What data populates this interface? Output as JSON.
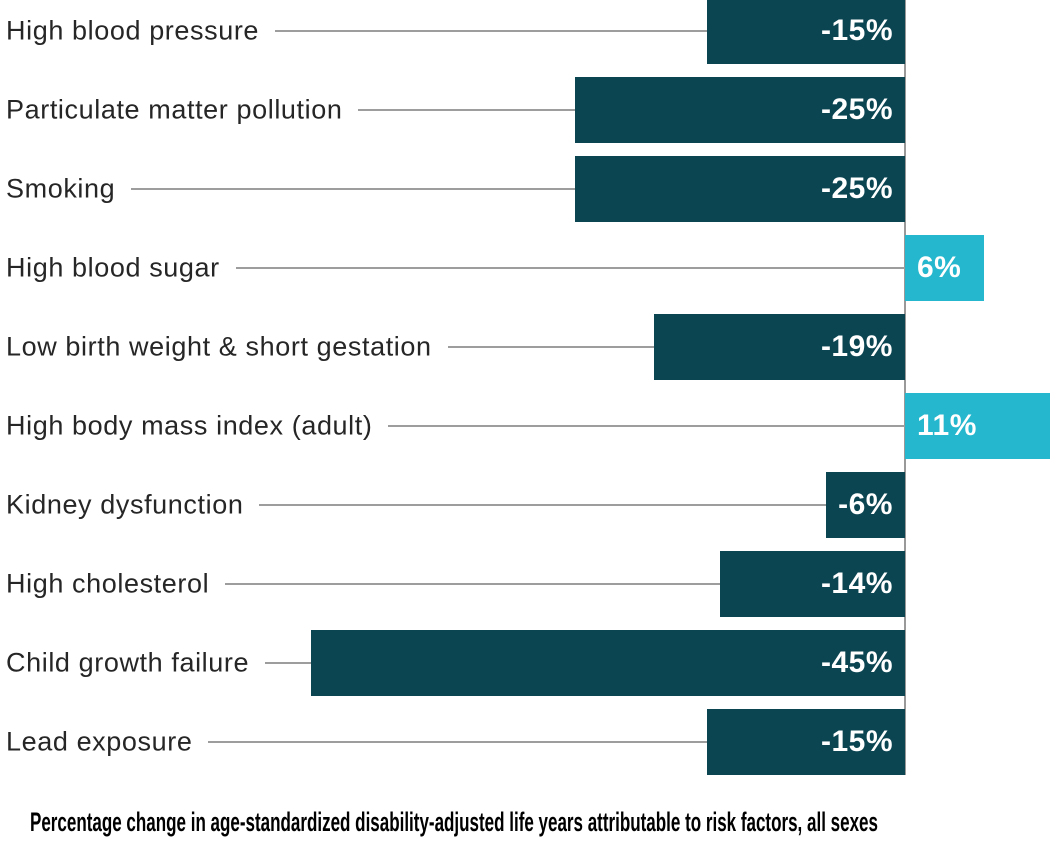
{
  "chart_data": {
    "type": "bar",
    "orientation": "horizontal",
    "items": [
      {
        "label": "High blood pressure",
        "value": -15,
        "value_label": "-15%"
      },
      {
        "label": "Particulate matter pollution",
        "value": -25,
        "value_label": "-25%"
      },
      {
        "label": "Smoking",
        "value": -25,
        "value_label": "-25%"
      },
      {
        "label": "High blood sugar",
        "value": 6,
        "value_label": "6%"
      },
      {
        "label": "Low birth weight & short gestation",
        "value": -19,
        "value_label": "-19%"
      },
      {
        "label": "High body mass index (adult)",
        "value": 11,
        "value_label": "11%"
      },
      {
        "label": "Kidney dysfunction",
        "value": -6,
        "value_label": "-6%"
      },
      {
        "label": "High cholesterol",
        "value": -14,
        "value_label": "-14%"
      },
      {
        "label": "Child growth failure",
        "value": -45,
        "value_label": "-45%"
      },
      {
        "label": "Lead exposure",
        "value": -15,
        "value_label": "-15%"
      }
    ],
    "caption": "Percentage change in age-standardized disability-adjusted life years attributable to risk factors, all sexes",
    "xlim": [
      -45,
      11
    ],
    "zero_axis_line": true,
    "grid": false,
    "legend": false,
    "colors": {
      "negative_bar": "#0b4552",
      "positive_bar": "#25b7cd",
      "leader_line": "#9d9d9d",
      "axis_line": "#999999",
      "category_text": "#262626",
      "value_text": "#ffffff",
      "caption_text": "#000000",
      "background": "#ffffff"
    }
  }
}
